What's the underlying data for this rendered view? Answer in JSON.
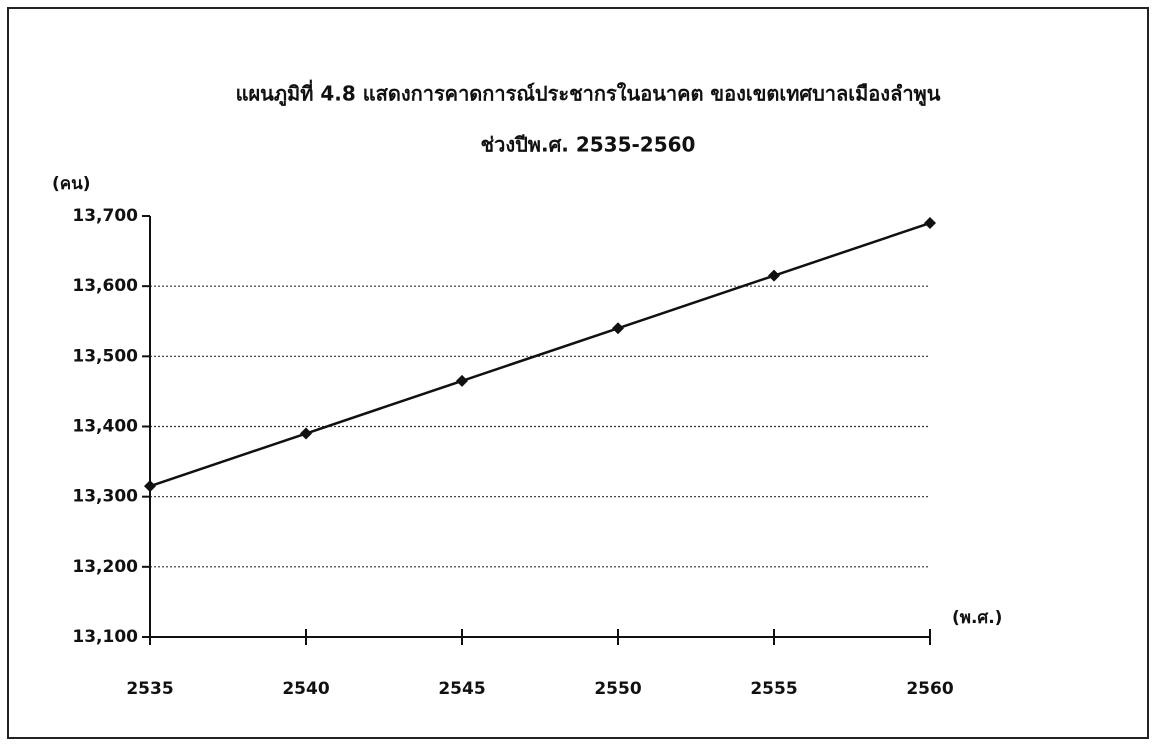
{
  "chart_data": {
    "type": "line",
    "title": "แผนภูมิที่  4.8  แสดงการคาดการณ์ประชากรในอนาคต ของเขตเทศบาลเมืองลำพูน",
    "subtitle": "ช่วงปีพ.ศ. 2535-2560",
    "y_label": "(คน)",
    "x_label": "(พ.ศ.)",
    "x": [
      2535,
      2540,
      2545,
      2550,
      2555,
      2560
    ],
    "series": [
      {
        "name": null,
        "color": "#111111",
        "values": [
          13315,
          13390,
          13465,
          13540,
          13615,
          13690
        ]
      }
    ],
    "xlim": [
      2535,
      2560
    ],
    "xticks": [
      2535,
      2540,
      2545,
      2550,
      2555,
      2560
    ],
    "ylim": [
      13100,
      13700
    ],
    "yticks": [
      {
        "value": 13100,
        "label": "13,100"
      },
      {
        "value": 13200,
        "label": "13,200"
      },
      {
        "value": 13300,
        "label": "13,300"
      },
      {
        "value": 13400,
        "label": "13,400"
      },
      {
        "value": 13500,
        "label": "13,500"
      },
      {
        "value": 13600,
        "label": "13,600"
      },
      {
        "value": 13700,
        "label": "13,700"
      }
    ],
    "grid": true
  }
}
